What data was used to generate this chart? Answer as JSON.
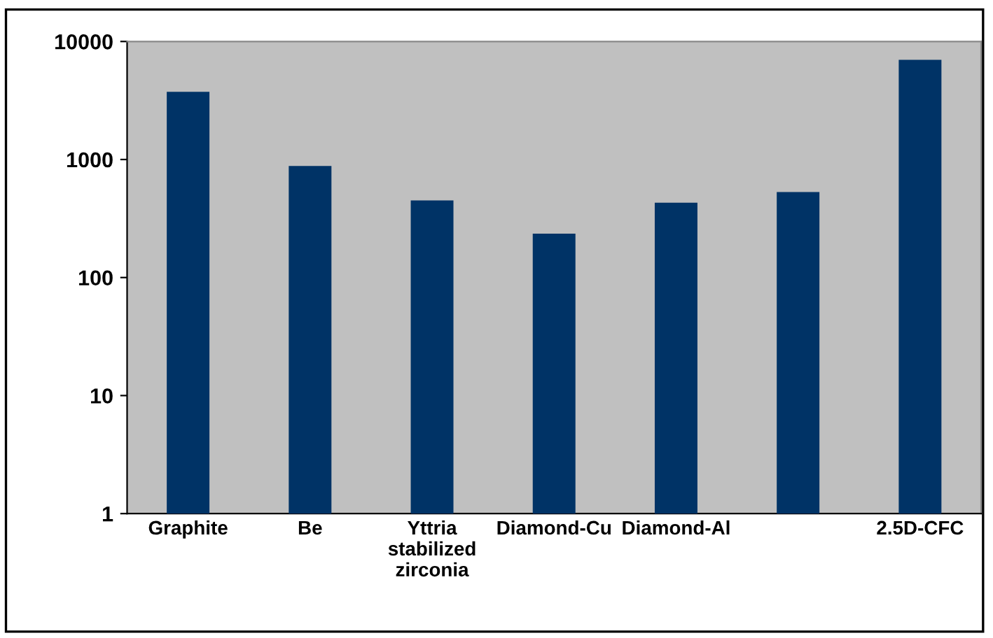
{
  "chart_data": {
    "type": "bar",
    "categories": [
      "Graphite",
      "Be",
      "Yttria stabilized zirconia",
      "Diamond-Cu",
      "Diamond-Al",
      null,
      "2.5D-CFC"
    ],
    "values": [
      3750,
      880,
      450,
      235,
      430,
      530,
      7000
    ],
    "color": "#003366",
    "log": true,
    "ylim": [
      1,
      10000
    ],
    "yticks": [
      1,
      10,
      100,
      1000,
      10000
    ],
    "grid": false,
    "legend": false
  }
}
